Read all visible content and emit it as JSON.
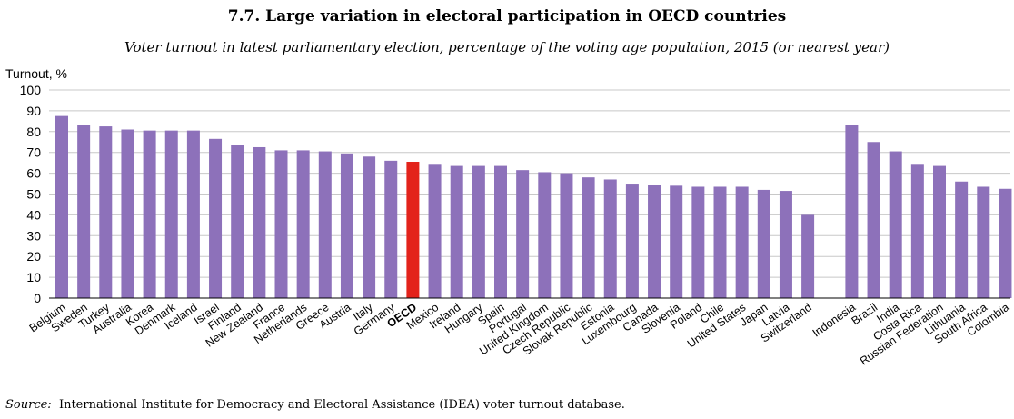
{
  "title": "7.7. Large variation in electoral participation in OECD countries",
  "subtitle": "Voter turnout in latest parliamentary election, percentage of the voting age population, 2015 (or nearest year)",
  "source_label": "Source:",
  "source_text": "International Institute for Democracy and Electoral Assistance (IDEA) voter turnout database.",
  "chart_data": {
    "type": "bar",
    "ylabel": "Turnout, %",
    "xlabel": "",
    "ylim": [
      0,
      100
    ],
    "yticks": [
      0,
      10,
      20,
      30,
      40,
      50,
      60,
      70,
      80,
      90,
      100
    ],
    "grid": true,
    "bar_color": "#8D71BA",
    "highlight_color": "#E3231B",
    "highlight_category": "OECD",
    "groups": [
      {
        "categories": [
          "Belgium",
          "Sweden",
          "Turkey",
          "Australia",
          "Korea",
          "Denmark",
          "Iceland",
          "Israel",
          "Finland",
          "New Zealand",
          "France",
          "Netherlands",
          "Greece",
          "Austria",
          "Italy",
          "Germany",
          "OECD",
          "Mexico",
          "Ireland",
          "Hungary",
          "Spain",
          "Portugal",
          "United Kingdom",
          "Czech Republic",
          "Slovak Republic",
          "Estonia",
          "Luxembourg",
          "Canada",
          "Slovenia",
          "Poland",
          "Chile",
          "United States",
          "Japan",
          "Latvia",
          "Switzerland"
        ],
        "values": [
          87.5,
          83,
          82.5,
          81,
          80.5,
          80.5,
          80.5,
          76.5,
          73.5,
          72.5,
          71,
          71,
          70.5,
          69.5,
          68,
          66,
          65.5,
          64.5,
          63.5,
          63.5,
          63.5,
          61.5,
          60.5,
          60,
          58,
          57,
          55,
          54.5,
          54,
          53.5,
          53.5,
          53.5,
          52,
          51.5,
          40
        ]
      },
      {
        "categories": [
          "Indonesia",
          "Brazil",
          "India",
          "Costa Rica",
          "Russian Federation",
          "Lithuania",
          "South Africa",
          "Colombia"
        ],
        "values": [
          83,
          75,
          70.5,
          64.5,
          63.5,
          56,
          53.5,
          52.5
        ]
      }
    ]
  }
}
